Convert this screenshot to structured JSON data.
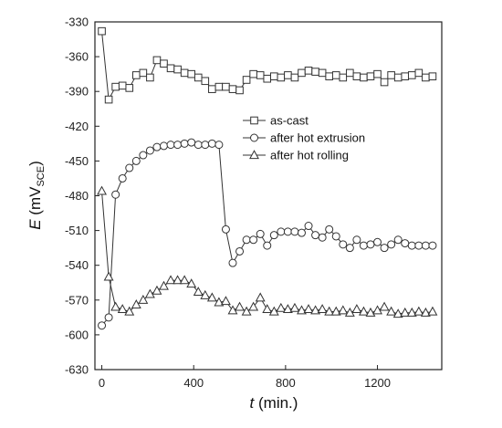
{
  "chart_data": {
    "type": "line",
    "xlabel": {
      "italic": "t",
      "rest": " (min.)"
    },
    "ylabel": {
      "italic": "E",
      "rest": " (mV",
      "sub": "SCE",
      "close": ")"
    },
    "xlim": [
      -30,
      1480
    ],
    "ylim": [
      -630,
      -330
    ],
    "xticks": [
      0,
      400,
      800,
      1200
    ],
    "yticks": [
      -330,
      -360,
      -390,
      -420,
      -450,
      -480,
      -510,
      -540,
      -570,
      -600,
      -630
    ],
    "legend_position": "upper-middle",
    "series": [
      {
        "name": "as-cast",
        "marker": "square",
        "x": [
          0,
          30,
          60,
          90,
          120,
          150,
          180,
          210,
          240,
          270,
          300,
          330,
          360,
          390,
          420,
          450,
          480,
          510,
          540,
          570,
          600,
          630,
          660,
          690,
          720,
          750,
          780,
          810,
          840,
          870,
          900,
          930,
          960,
          990,
          1020,
          1050,
          1080,
          1110,
          1140,
          1170,
          1200,
          1230,
          1260,
          1290,
          1320,
          1350,
          1380,
          1410,
          1440
        ],
        "y": [
          -338,
          -397,
          -386,
          -385,
          -387,
          -376,
          -374,
          -378,
          -363,
          -366,
          -370,
          -371,
          -374,
          -375,
          -378,
          -381,
          -388,
          -386,
          -386,
          -388,
          -389,
          -380,
          -375,
          -376,
          -379,
          -377,
          -378,
          -376,
          -378,
          -374,
          -372,
          -373,
          -374,
          -377,
          -376,
          -378,
          -374,
          -377,
          -378,
          -377,
          -375,
          -382,
          -376,
          -378,
          -377,
          -376,
          -374,
          -378,
          -377
        ]
      },
      {
        "name": "after hot extrusion",
        "marker": "circle",
        "x": [
          0,
          30,
          60,
          90,
          120,
          150,
          180,
          210,
          240,
          270,
          300,
          330,
          360,
          390,
          420,
          450,
          480,
          510,
          540,
          570,
          600,
          630,
          660,
          690,
          720,
          750,
          780,
          810,
          840,
          870,
          900,
          930,
          960,
          990,
          1020,
          1050,
          1080,
          1110,
          1140,
          1170,
          1200,
          1230,
          1260,
          1290,
          1320,
          1350,
          1380,
          1410,
          1440
        ],
        "y": [
          -592,
          -585,
          -479,
          -465,
          -456,
          -450,
          -445,
          -441,
          -438,
          -437,
          -436,
          -436,
          -435,
          -434,
          -436,
          -436,
          -435,
          -436,
          -509,
          -538,
          -528,
          -518,
          -518,
          -513,
          -523,
          -514,
          -511,
          -511,
          -511,
          -512,
          -506,
          -514,
          -516,
          -509,
          -515,
          -522,
          -525,
          -518,
          -523,
          -522,
          -520,
          -525,
          -522,
          -518,
          -521,
          -523,
          -523,
          -523,
          -523
        ]
      },
      {
        "name": "after hot rolling",
        "marker": "triangle",
        "x": [
          0,
          30,
          60,
          90,
          120,
          150,
          180,
          210,
          240,
          270,
          300,
          330,
          360,
          390,
          420,
          450,
          480,
          510,
          540,
          570,
          600,
          630,
          660,
          690,
          720,
          750,
          780,
          810,
          840,
          870,
          900,
          930,
          960,
          990,
          1020,
          1050,
          1080,
          1110,
          1140,
          1170,
          1200,
          1230,
          1260,
          1290,
          1320,
          1350,
          1380,
          1410,
          1440
        ],
        "y": [
          -476,
          -550,
          -576,
          -578,
          -580,
          -574,
          -570,
          -565,
          -562,
          -558,
          -553,
          -553,
          -553,
          -556,
          -563,
          -566,
          -568,
          -572,
          -571,
          -579,
          -576,
          -580,
          -576,
          -568,
          -578,
          -580,
          -577,
          -578,
          -577,
          -579,
          -578,
          -579,
          -578,
          -580,
          -580,
          -579,
          -581,
          -578,
          -580,
          -581,
          -579,
          -576,
          -580,
          -582,
          -581,
          -581,
          -580,
          -581,
          -580
        ]
      }
    ]
  }
}
